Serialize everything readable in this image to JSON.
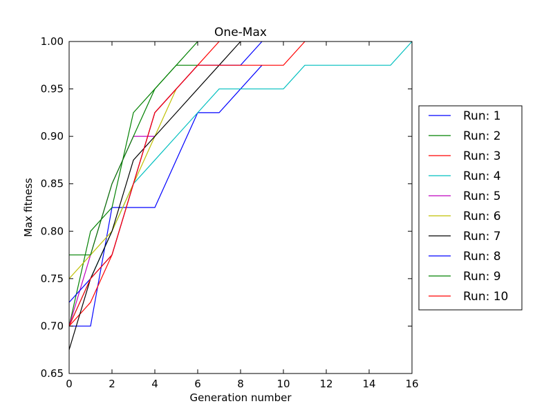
{
  "chart_data": {
    "type": "line",
    "title": "One-Max",
    "xlabel": "Generation number",
    "ylabel": "Max fitness",
    "xlim": [
      0,
      16
    ],
    "ylim": [
      0.65,
      1.0
    ],
    "xticks": [
      "0",
      "2",
      "4",
      "6",
      "8",
      "10",
      "12",
      "14",
      "16"
    ],
    "yticks": [
      "0.65",
      "0.70",
      "0.75",
      "0.80",
      "0.85",
      "0.90",
      "0.95",
      "1.00"
    ],
    "grid": false,
    "legend_position": "center-right-outside",
    "series": [
      {
        "name": "Run: 1",
        "color": "#0000ff",
        "x": [
          0,
          1,
          2,
          3,
          4,
          5,
          6,
          7,
          8,
          9
        ],
        "y": [
          0.7,
          0.7,
          0.825,
          0.825,
          0.825,
          0.875,
          0.925,
          0.925,
          0.95,
          0.975
        ]
      },
      {
        "name": "Run: 2",
        "color": "#008000",
        "x": [
          0,
          1,
          2,
          3,
          4,
          5,
          6
        ],
        "y": [
          0.7,
          0.8,
          0.825,
          0.925,
          0.95,
          0.975,
          1.0
        ]
      },
      {
        "name": "Run: 3",
        "color": "#ff0000",
        "x": [
          0,
          1,
          2,
          3,
          4,
          5,
          6,
          7
        ],
        "y": [
          0.7,
          0.725,
          0.775,
          0.85,
          0.925,
          0.95,
          0.975,
          1.0
        ]
      },
      {
        "name": "Run: 4",
        "color": "#00bfbf",
        "x": [
          0,
          1,
          2,
          3,
          4,
          5,
          6,
          7,
          8,
          9,
          10,
          11,
          12,
          13,
          14,
          15,
          16
        ],
        "y": [
          0.7,
          0.75,
          0.8,
          0.85,
          0.875,
          0.9,
          0.925,
          0.95,
          0.95,
          0.95,
          0.95,
          0.975,
          0.975,
          0.975,
          0.975,
          0.975,
          1.0
        ]
      },
      {
        "name": "Run: 5",
        "color": "#bf00bf",
        "x": [
          0,
          1,
          2,
          3,
          4
        ],
        "y": [
          0.7,
          0.775,
          0.85,
          0.9,
          0.9
        ]
      },
      {
        "name": "Run: 6",
        "color": "#bfbf00",
        "x": [
          0,
          1,
          2,
          3,
          4,
          5
        ],
        "y": [
          0.75,
          0.775,
          0.8,
          0.85,
          0.9,
          0.95
        ]
      },
      {
        "name": "Run: 7",
        "color": "#000000",
        "x": [
          0,
          1,
          2,
          3,
          4,
          5,
          6,
          7,
          8
        ],
        "y": [
          0.675,
          0.75,
          0.8,
          0.875,
          0.9,
          0.925,
          0.95,
          0.975,
          1.0
        ]
      },
      {
        "name": "Run: 8",
        "color": "#0000ff",
        "x": [
          0,
          1,
          2,
          3,
          4,
          5,
          6,
          7,
          8,
          9
        ],
        "y": [
          0.725,
          0.75,
          0.775,
          0.85,
          0.925,
          0.95,
          0.975,
          0.975,
          0.975,
          1.0
        ]
      },
      {
        "name": "Run: 9",
        "color": "#008000",
        "x": [
          0,
          1,
          2,
          3,
          4,
          5,
          6
        ],
        "y": [
          0.775,
          0.775,
          0.85,
          0.9,
          0.95,
          0.975,
          0.975
        ]
      },
      {
        "name": "Run: 10",
        "color": "#ff0000",
        "x": [
          0,
          1,
          2,
          3,
          4,
          5,
          6,
          7,
          8,
          9,
          10,
          11
        ],
        "y": [
          0.7,
          0.75,
          0.775,
          0.85,
          0.925,
          0.95,
          0.975,
          0.975,
          0.975,
          0.975,
          0.975,
          1.0
        ]
      }
    ]
  }
}
